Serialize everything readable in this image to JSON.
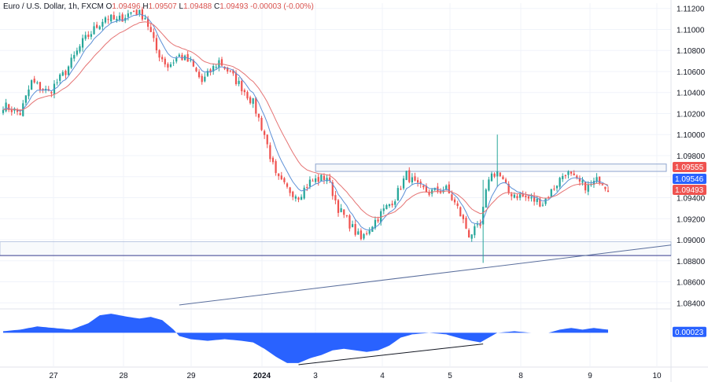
{
  "header": {
    "symbol": "Euro / U.S. Dollar, 1h, FXCM",
    "o_label": "O",
    "o_value": "1.09496",
    "h_label": "H",
    "h_value": "1.09507",
    "l_label": "L",
    "l_value": "1.09488",
    "c_label": "C",
    "c_value": "1.09493",
    "change": "-0.00003 (-0.00%)"
  },
  "colors": {
    "up": "#26a69a",
    "down": "#ef5350",
    "fast_ma": "#5b8fd6",
    "slow_ma": "#e57373",
    "histogram": "#2962ff",
    "support_line": "#3b3f8f",
    "trend_line": "#5a6e9c",
    "zone": "#8fa6cf",
    "badge_red": "#ef5350",
    "badge_blue": "#2962ff"
  },
  "chart_data": [
    {
      "type": "candlestick",
      "ylim": [
        1.0835,
        1.1125
      ],
      "y_ticks": [
        "1.11200",
        "1.11000",
        "1.10800",
        "1.10600",
        "1.10400",
        "1.10200",
        "1.10000",
        "1.09800",
        "1.09600",
        "1.09400",
        "1.09200",
        "1.09000",
        "1.08800",
        "1.08600",
        "1.08400"
      ],
      "x_tick_labels": [
        {
          "label": "27",
          "bold": false
        },
        {
          "label": "28",
          "bold": false
        },
        {
          "label": "29",
          "bold": false
        },
        {
          "label": "2024",
          "bold": true
        },
        {
          "label": "3",
          "bold": false
        },
        {
          "label": "4",
          "bold": false
        },
        {
          "label": "5",
          "bold": false
        },
        {
          "label": "8",
          "bold": false
        },
        {
          "label": "9",
          "bold": false
        },
        {
          "label": "10",
          "bold": false
        }
      ],
      "key_points": [
        {
          "bar": 0,
          "close": 1.1028
        },
        {
          "bar": 6,
          "close": 1.102
        },
        {
          "bar": 10,
          "close": 1.105
        },
        {
          "bar": 16,
          "close": 1.104
        },
        {
          "bar": 22,
          "close": 1.106
        },
        {
          "bar": 28,
          "close": 1.1088
        },
        {
          "bar": 36,
          "close": 1.1112
        },
        {
          "bar": 40,
          "close": 1.1108
        },
        {
          "bar": 46,
          "close": 1.1118
        },
        {
          "bar": 50,
          "close": 1.1112
        },
        {
          "bar": 54,
          "close": 1.108
        },
        {
          "bar": 58,
          "close": 1.1065
        },
        {
          "bar": 62,
          "close": 1.1075
        },
        {
          "bar": 66,
          "close": 1.1068
        },
        {
          "bar": 70,
          "close": 1.105
        },
        {
          "bar": 76,
          "close": 1.107
        },
        {
          "bar": 80,
          "close": 1.1058
        },
        {
          "bar": 84,
          "close": 1.1045
        },
        {
          "bar": 88,
          "close": 1.103
        },
        {
          "bar": 92,
          "close": 1.1
        },
        {
          "bar": 96,
          "close": 1.096
        },
        {
          "bar": 100,
          "close": 1.0948
        },
        {
          "bar": 104,
          "close": 1.0942
        },
        {
          "bar": 108,
          "close": 1.0955
        },
        {
          "bar": 114,
          "close": 1.096
        },
        {
          "bar": 118,
          "close": 1.093
        },
        {
          "bar": 122,
          "close": 1.0915
        },
        {
          "bar": 126,
          "close": 1.09
        },
        {
          "bar": 130,
          "close": 1.0915
        },
        {
          "bar": 134,
          "close": 1.0928
        },
        {
          "bar": 138,
          "close": 1.094
        },
        {
          "bar": 142,
          "close": 1.0962
        },
        {
          "bar": 146,
          "close": 1.095
        },
        {
          "bar": 150,
          "close": 1.0945
        },
        {
          "bar": 156,
          "close": 1.0948
        },
        {
          "bar": 160,
          "close": 1.093
        },
        {
          "bar": 164,
          "close": 1.0905
        },
        {
          "bar": 168,
          "close": 1.0912
        },
        {
          "bar": 171,
          "close": 1.096
        },
        {
          "bar": 174,
          "close": 1.0965
        },
        {
          "bar": 178,
          "close": 1.0945
        },
        {
          "bar": 184,
          "close": 1.094
        },
        {
          "bar": 190,
          "close": 1.0935
        },
        {
          "bar": 194,
          "close": 1.095
        },
        {
          "bar": 198,
          "close": 1.0965
        },
        {
          "bar": 202,
          "close": 1.0955
        },
        {
          "bar": 206,
          "close": 1.095
        },
        {
          "bar": 210,
          "close": 1.0958
        },
        {
          "bar": 213,
          "close": 1.0949
        }
      ],
      "bar_count": 214,
      "special_wicks": [
        {
          "bar": 169,
          "high": 1.0957,
          "low": 1.0878
        },
        {
          "bar": 174,
          "high": 1.1,
          "low": 1.095
        }
      ],
      "resistance_zone": {
        "y_top": 1.0972,
        "y_bottom": 1.0965,
        "bar_start": 110
      },
      "support_zone": {
        "y_top": 1.0898,
        "y_bottom": 1.0885
      },
      "trend_line": {
        "start_bar": 62,
        "start_y": 1.0838,
        "end_y": 1.0895
      },
      "price_badges": [
        {
          "label": "1.09555",
          "value": 1.09555,
          "color": "badge_red"
        },
        {
          "label": "1.09546",
          "value": 1.09546,
          "color": "badge_blue"
        },
        {
          "label": "1.09493",
          "value": 1.09493,
          "color": "badge_red"
        }
      ]
    },
    {
      "type": "area",
      "name": "oscillator",
      "ylim": [
        -0.0021,
        0.0015
      ],
      "value_label": "0.00023",
      "key_points": [
        {
          "bar": 0,
          "value": 0.0001
        },
        {
          "bar": 6,
          "value": 0.0002
        },
        {
          "bar": 12,
          "value": 0.0004
        },
        {
          "bar": 18,
          "value": 0.0003
        },
        {
          "bar": 24,
          "value": 0.0002
        },
        {
          "bar": 30,
          "value": 0.0006
        },
        {
          "bar": 34,
          "value": 0.0011
        },
        {
          "bar": 38,
          "value": 0.0012
        },
        {
          "bar": 44,
          "value": 0.001
        },
        {
          "bar": 48,
          "value": 0.0009
        },
        {
          "bar": 52,
          "value": 0.001
        },
        {
          "bar": 56,
          "value": 0.0008
        },
        {
          "bar": 60,
          "value": 0.0002
        },
        {
          "bar": 62,
          "value": -0.0002
        },
        {
          "bar": 66,
          "value": -0.0004
        },
        {
          "bar": 72,
          "value": -0.0005
        },
        {
          "bar": 78,
          "value": -0.0004
        },
        {
          "bar": 84,
          "value": -0.0005
        },
        {
          "bar": 88,
          "value": -0.0006
        },
        {
          "bar": 92,
          "value": -0.001
        },
        {
          "bar": 96,
          "value": -0.0015
        },
        {
          "bar": 100,
          "value": -0.0019
        },
        {
          "bar": 104,
          "value": -0.0019
        },
        {
          "bar": 108,
          "value": -0.0016
        },
        {
          "bar": 112,
          "value": -0.0014
        },
        {
          "bar": 116,
          "value": -0.0011
        },
        {
          "bar": 120,
          "value": -0.001
        },
        {
          "bar": 124,
          "value": -0.0011
        },
        {
          "bar": 128,
          "value": -0.0012
        },
        {
          "bar": 132,
          "value": -0.0011
        },
        {
          "bar": 136,
          "value": -0.0008
        },
        {
          "bar": 140,
          "value": -0.0003
        },
        {
          "bar": 144,
          "value": -0.0001
        },
        {
          "bar": 150,
          "value": 0.0
        },
        {
          "bar": 156,
          "value": -0.0001
        },
        {
          "bar": 162,
          "value": -0.0004
        },
        {
          "bar": 168,
          "value": -0.0006
        },
        {
          "bar": 171,
          "value": -0.0003
        },
        {
          "bar": 174,
          "value": 0.0
        },
        {
          "bar": 180,
          "value": 0.0001
        },
        {
          "bar": 186,
          "value": 0.0
        },
        {
          "bar": 192,
          "value": 0.0
        },
        {
          "bar": 196,
          "value": 0.0002
        },
        {
          "bar": 200,
          "value": 0.0003
        },
        {
          "bar": 204,
          "value": 0.0002
        },
        {
          "bar": 208,
          "value": 0.0003
        },
        {
          "bar": 213,
          "value": 0.0002
        }
      ],
      "divergence_line": {
        "start_bar": 104,
        "start_value": -0.002,
        "end_bar": 169,
        "end_value": -0.0007
      }
    }
  ]
}
